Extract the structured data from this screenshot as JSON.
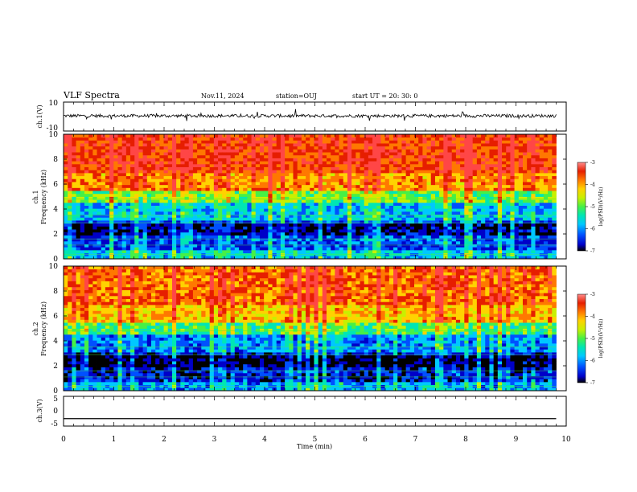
{
  "header": {
    "title": "VLF Spectra",
    "date": "Nov.11, 2024",
    "station": "station=OUJ",
    "start": "start  UT  =   20: 30: 0"
  },
  "colors": {
    "colormap": [
      "#000000",
      "#0000c8",
      "#0050ff",
      "#00c8ff",
      "#00e6b4",
      "#46f046",
      "#c8f000",
      "#ffd200",
      "#ff7800",
      "#e61e00",
      "#ff4646"
    ],
    "trace": "#000000"
  },
  "chart_data": [
    {
      "type": "line",
      "name": "waveform-ch1",
      "ylabel": "ch.1(V)",
      "ylim": [
        -10,
        10
      ],
      "yticks": [
        "10",
        "-10"
      ],
      "xlim": [
        0,
        10
      ],
      "x": [
        0,
        9.8
      ],
      "y": [
        0,
        0
      ],
      "note_level_V": 0.5
    },
    {
      "type": "heatmap",
      "name": "spectrogram-ch1",
      "ylabel": "ch.1\nFrequency (kHz)",
      "ylim": [
        0,
        10
      ],
      "yticks": [
        "0",
        "2",
        "4",
        "6",
        "8",
        "10"
      ],
      "xlim": [
        0,
        10
      ],
      "data_end_min": 9.8,
      "colorbar": {
        "label": "log(PSD)(V²/Hz)",
        "range": [
          -7,
          -3
        ],
        "ticks": [
          "-3",
          "-4",
          "-5",
          "-6",
          "-7"
        ]
      }
    },
    {
      "type": "heatmap",
      "name": "spectrogram-ch2",
      "ylabel": "ch.2\nFrequency (kHz)",
      "ylim": [
        0,
        10
      ],
      "yticks": [
        "0",
        "2",
        "4",
        "6",
        "8",
        "10"
      ],
      "xlim": [
        0,
        10
      ],
      "data_end_min": 9.8,
      "colorbar": {
        "label": "log(PSD)(V²/Hz)",
        "range": [
          -7,
          -3
        ],
        "ticks": [
          "-3",
          "-4",
          "-5",
          "-6",
          "-7"
        ]
      }
    },
    {
      "type": "line",
      "name": "waveform-ch3",
      "ylabel": "ch.3(V)",
      "ylim": [
        -5,
        5
      ],
      "yticks": [
        "5",
        "0",
        "-5"
      ],
      "xlim": [
        0,
        10
      ],
      "x": [
        0,
        9.8
      ],
      "y": [
        -2.5,
        -2.5
      ]
    }
  ],
  "xaxis": {
    "label": "Time (min)",
    "ticks": [
      "0",
      "1",
      "2",
      "3",
      "4",
      "5",
      "6",
      "7",
      "8",
      "9",
      "10"
    ]
  }
}
